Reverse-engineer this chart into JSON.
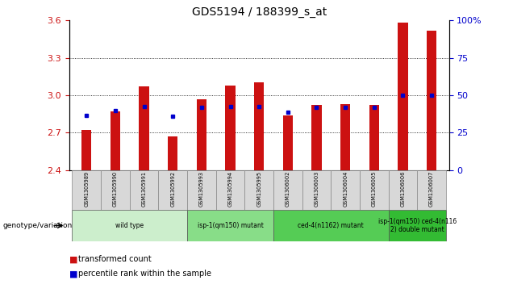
{
  "title": "GDS5194 / 188399_s_at",
  "samples": [
    "GSM1305989",
    "GSM1305990",
    "GSM1305991",
    "GSM1305992",
    "GSM1305993",
    "GSM1305994",
    "GSM1305995",
    "GSM1306002",
    "GSM1306003",
    "GSM1306004",
    "GSM1306005",
    "GSM1306006",
    "GSM1306007"
  ],
  "bar_tops": [
    2.72,
    2.87,
    3.07,
    2.67,
    2.97,
    3.08,
    3.105,
    2.84,
    2.92,
    2.93,
    2.92,
    3.58,
    3.52
  ],
  "percentile_vals": [
    2.84,
    2.875,
    2.91,
    2.83,
    2.9,
    2.91,
    2.91,
    2.865,
    2.905,
    2.905,
    2.905,
    3.0,
    3.0
  ],
  "ymin": 2.4,
  "ymax": 3.6,
  "yticks_left": [
    2.4,
    2.7,
    3.0,
    3.3,
    3.6
  ],
  "right_yticks": [
    0,
    25,
    50,
    75,
    100
  ],
  "bar_color": "#cc1111",
  "dot_color": "#0000cc",
  "baseline": 2.4,
  "groups": [
    {
      "label": "wild type",
      "start": 0,
      "end": 4,
      "color": "#cceecc"
    },
    {
      "label": "isp-1(qm150) mutant",
      "start": 4,
      "end": 7,
      "color": "#88dd88"
    },
    {
      "label": "ced-4(n1162) mutant",
      "start": 7,
      "end": 11,
      "color": "#55cc55"
    },
    {
      "label": "isp-1(qm150) ced-4(n116\n2) double mutant",
      "start": 11,
      "end": 13,
      "color": "#33bb33"
    }
  ],
  "genotype_label": "genotype/variation",
  "legend_red": "transformed count",
  "legend_blue": "percentile rank within the sample",
  "bar_width": 0.35,
  "dot_size": 3.5
}
